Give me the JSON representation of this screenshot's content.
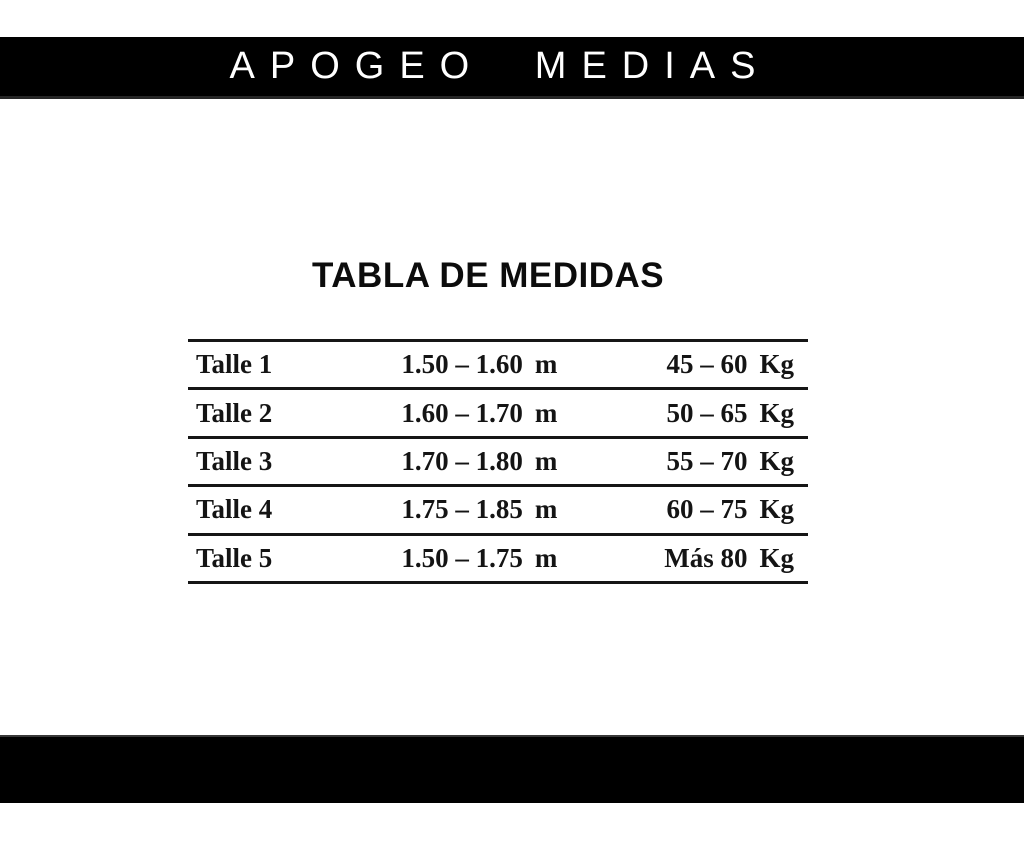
{
  "colors": {
    "bar_background": "#000000",
    "page_background": "#ffffff",
    "text": "#141414"
  },
  "header": {
    "brand": "APOGEO MEDIAS"
  },
  "section_title": "TABLA DE MEDIDAS",
  "size_table": {
    "rows": [
      {
        "size": "Talle 1",
        "height": "1.50 – 1.60",
        "height_unit": "m",
        "weight": "45 – 60",
        "weight_unit": "Kg"
      },
      {
        "size": "Talle 2",
        "height": "1.60 – 1.70",
        "height_unit": "m",
        "weight": "50 – 65",
        "weight_unit": "Kg"
      },
      {
        "size": "Talle 3",
        "height": "1.70 – 1.80",
        "height_unit": "m",
        "weight": "55 – 70",
        "weight_unit": "Kg"
      },
      {
        "size": "Talle 4",
        "height": "1.75 – 1.85",
        "height_unit": "m",
        "weight": "60 – 75",
        "weight_unit": "Kg"
      },
      {
        "size": "Talle 5",
        "height": "1.50 – 1.75",
        "height_unit": "m",
        "weight": "Más 80",
        "weight_unit": "Kg"
      }
    ]
  },
  "chart_data": {
    "type": "table",
    "title": "TABLA DE MEDIDAS",
    "rows": [
      [
        "Talle 1",
        "1.50 – 1.60 m",
        "45 – 60 Kg"
      ],
      [
        "Talle 2",
        "1.60 – 1.70 m",
        "50 – 65 Kg"
      ],
      [
        "Talle 3",
        "1.70 – 1.80 m",
        "55 – 70 Kg"
      ],
      [
        "Talle 4",
        "1.75 – 1.85 m",
        "60 – 75 Kg"
      ],
      [
        "Talle 5",
        "1.50 – 1.75 m",
        "Más 80 Kg"
      ]
    ]
  }
}
